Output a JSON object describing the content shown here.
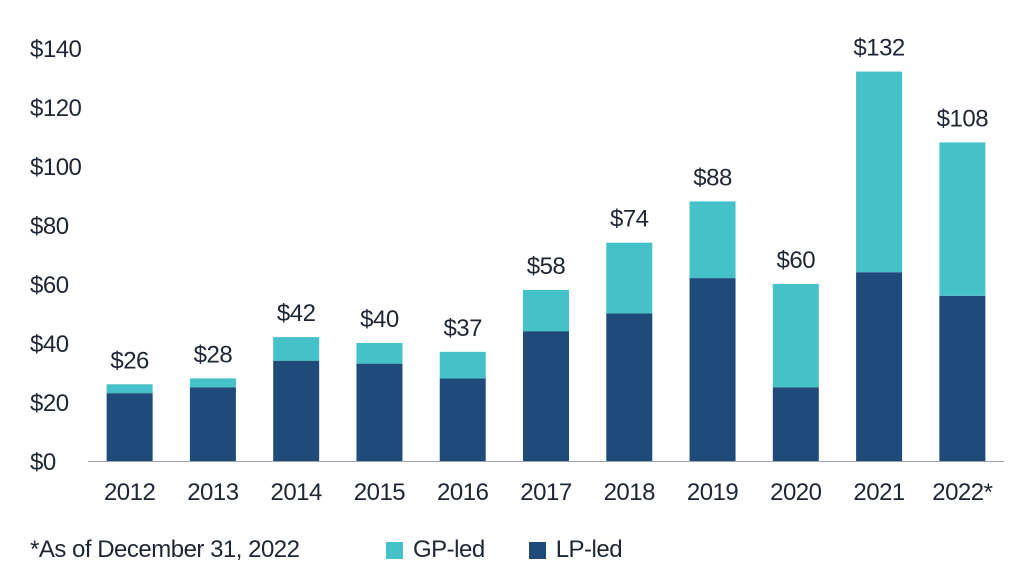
{
  "chart_data": {
    "type": "bar",
    "stacked": true,
    "categories": [
      "2012",
      "2013",
      "2014",
      "2015",
      "2016",
      "2017",
      "2018",
      "2019",
      "2020",
      "2021",
      "2022*"
    ],
    "series": [
      {
        "name": "LP-led",
        "color": "#1e4b7a",
        "values": [
          23,
          25,
          34,
          33,
          28,
          44,
          50,
          62,
          25,
          64,
          56
        ]
      },
      {
        "name": "GP-led",
        "color": "#45c1c9",
        "values": [
          3,
          3,
          8,
          7,
          9,
          14,
          24,
          26,
          35,
          68,
          52
        ]
      }
    ],
    "totals": [
      26,
      28,
      42,
      40,
      37,
      58,
      74,
      88,
      60,
      132,
      108
    ],
    "total_labels": [
      "$26",
      "$28",
      "$42",
      "$40",
      "$37",
      "$58",
      "$74",
      "$88",
      "$60",
      "$132",
      "$108"
    ],
    "ylim": [
      0,
      140
    ],
    "yticks": [
      0,
      20,
      40,
      60,
      80,
      100,
      120,
      140
    ],
    "ytick_labels": [
      "$0",
      "$20",
      "$40",
      "$60",
      "$80",
      "$100",
      "$120",
      "$140"
    ],
    "grid": false,
    "legend_position": "bottom",
    "title": "",
    "xlabel": "",
    "ylabel": ""
  },
  "footnote": "*As of December 31, 2022",
  "legend": {
    "items": [
      {
        "label": "GP-led",
        "color": "#45c1c9"
      },
      {
        "label": "LP-led",
        "color": "#1e4b7a"
      }
    ]
  }
}
